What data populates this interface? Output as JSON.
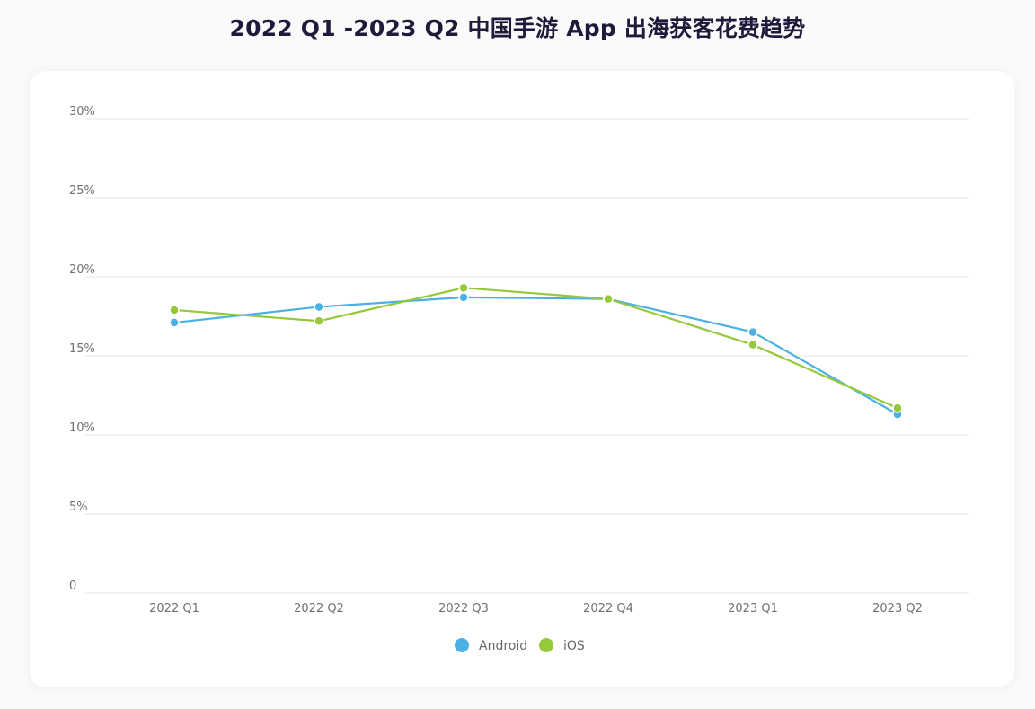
{
  "title": "2022 Q1 -2023 Q2 中国手游 App 出海获客花费趋势",
  "chart_data": {
    "type": "line",
    "title": "2022 Q1 -2023 Q2 中国手游 App 出海获客花费趋势",
    "xlabel": "",
    "ylabel": "",
    "categories": [
      "2022 Q1",
      "2022 Q2",
      "2022 Q3",
      "2022 Q4",
      "2023 Q1",
      "2023 Q2"
    ],
    "y_ticks": [
      0,
      5,
      10,
      15,
      20,
      25,
      30
    ],
    "y_tick_labels": [
      "0",
      "5%",
      "10%",
      "15%",
      "20%",
      "25%",
      "30%"
    ],
    "ylim": [
      0,
      30
    ],
    "grid": true,
    "legend_position": "bottom",
    "series": [
      {
        "name": "Android",
        "color": "#4bb1e3",
        "values": [
          17.1,
          18.1,
          18.7,
          18.6,
          16.5,
          11.3
        ]
      },
      {
        "name": "iOS",
        "color": "#96c83c",
        "values": [
          17.9,
          17.2,
          19.3,
          18.6,
          15.7,
          11.7
        ]
      }
    ]
  }
}
